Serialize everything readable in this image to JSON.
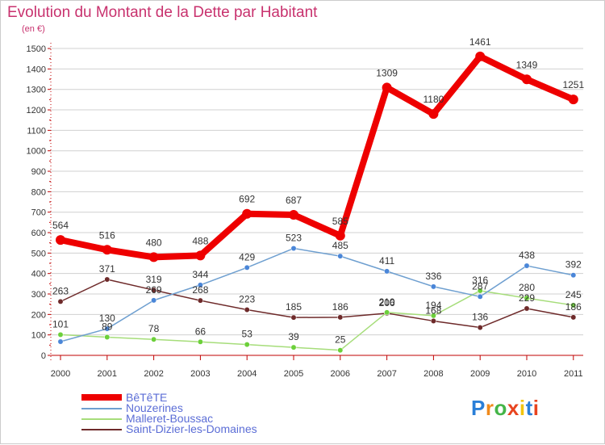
{
  "header": {
    "title": "Evolution du Montant de la Dette par Habitant",
    "unit": "(en €)"
  },
  "logo": {
    "text": "Proxiti",
    "colors": [
      "#2a7fd8",
      "#f08a1c",
      "#44b548",
      "#e8441f",
      "#f2c40f",
      "#2a7fd8",
      "#e8441f"
    ]
  },
  "colors": {
    "title": "#c8326e",
    "axis": "#c00000",
    "grid": "#d0d0d0",
    "legend_text": "#5b6dd6"
  },
  "chart_data": {
    "type": "line",
    "title": "Evolution du Montant de la Dette par Habitant",
    "ylabel": "(en €)",
    "xlabel": "",
    "ylim": [
      0,
      1500
    ],
    "yticks": [
      0,
      100,
      200,
      300,
      400,
      500,
      600,
      700,
      800,
      900,
      1000,
      1100,
      1200,
      1300,
      1400,
      1500
    ],
    "grid": "horizontal",
    "categories": [
      "2000",
      "2001",
      "2002",
      "2003",
      "2004",
      "2005",
      "2006",
      "2007",
      "2008",
      "2009",
      "2010",
      "2011"
    ],
    "series": [
      {
        "name": "BêTêTE",
        "color": "#ee0000",
        "point_color": "#ee0000",
        "width": 8,
        "r": 6,
        "values": [
          564,
          516,
          480,
          488,
          692,
          687,
          585,
          1309,
          1180,
          1461,
          1349,
          1251
        ]
      },
      {
        "name": "Nouzerines",
        "color": "#6e9fd0",
        "point_color": "#4a86d8",
        "width": 1.5,
        "r": 3.2,
        "values": [
          67,
          130,
          269,
          344,
          429,
          523,
          485,
          411,
          336,
          287,
          438,
          392
        ]
      },
      {
        "name": "Malleret-Boussac",
        "color": "#a6dd7a",
        "point_color": "#6cd03a",
        "width": 1.5,
        "r": 3.2,
        "values": [
          101,
          89,
          78,
          66,
          53,
          39,
          25,
          210,
          194,
          316,
          280,
          245
        ]
      },
      {
        "name": "Saint-Dizier-les-Domaines",
        "color": "#6e2a2a",
        "point_color": "#6e2a2a",
        "width": 1.5,
        "r": 3.2,
        "values": [
          263,
          371,
          319,
          268,
          223,
          185,
          186,
          206,
          168,
          136,
          229,
          186
        ]
      }
    ],
    "data_labels": [
      {
        "series": 0,
        "labels": [
          "564",
          "516",
          "480",
          "488",
          "692",
          "687",
          "585",
          "1309",
          "1180",
          "1461",
          "1349",
          "1251"
        ]
      },
      {
        "series": 1,
        "labels": [
          "",
          "130",
          "269",
          "344",
          "429",
          "523",
          "485",
          "411",
          "336",
          "287",
          "438",
          "392"
        ]
      },
      {
        "series": 2,
        "labels": [
          "101",
          "89",
          "78",
          "66",
          "53",
          "39",
          "25",
          "210",
          "194",
          "316",
          "280",
          "245"
        ]
      },
      {
        "series": 3,
        "labels": [
          "263",
          "371",
          "319",
          "268",
          "223",
          "185",
          "186",
          "206",
          "168",
          "136",
          "229",
          "186"
        ]
      }
    ],
    "legend": "bottom-left"
  }
}
